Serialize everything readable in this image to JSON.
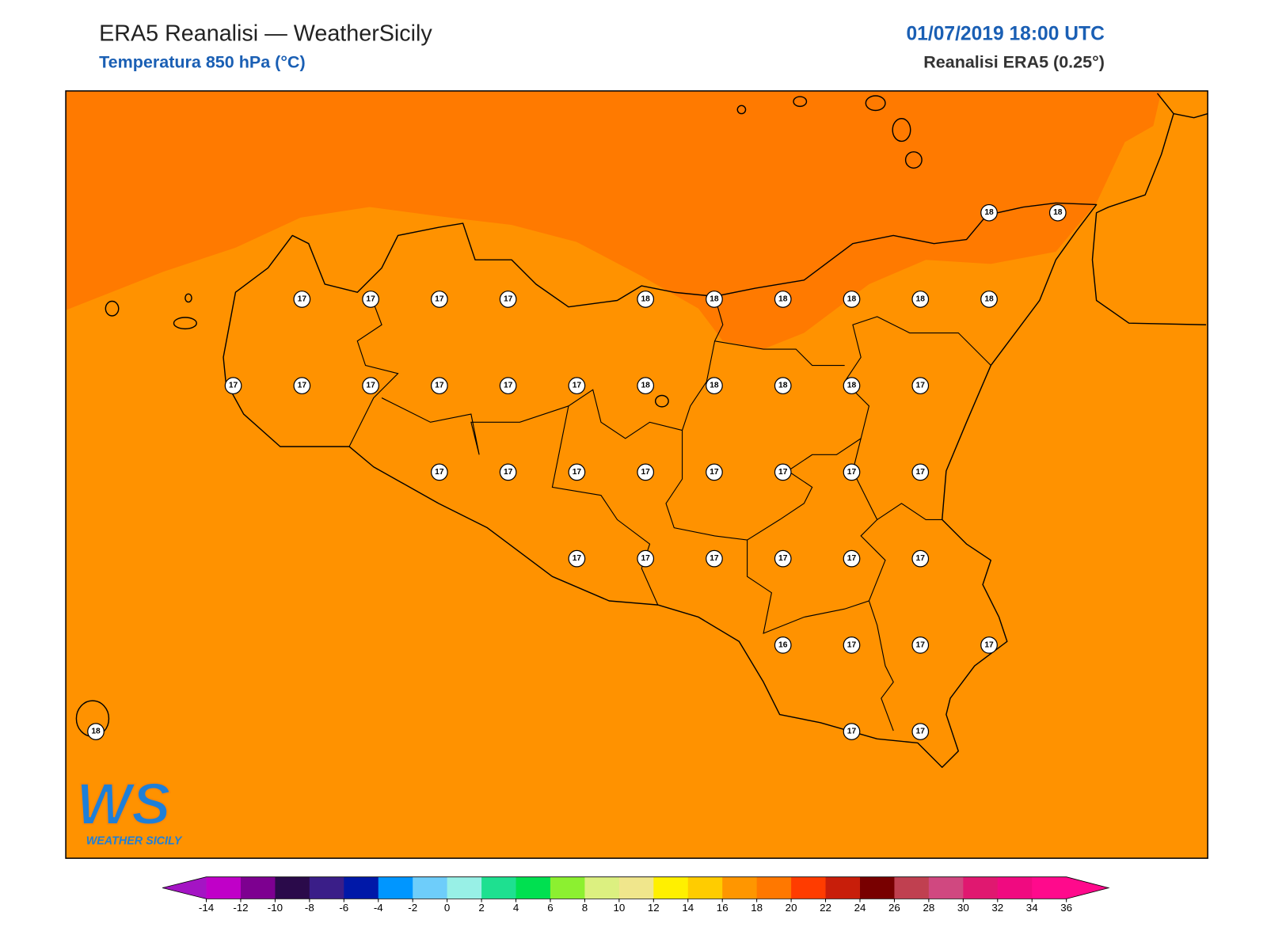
{
  "header": {
    "title": "ERA5 Reanalisi — WeatherSicily",
    "subtitle": "Temperatura 850 hPa (°C)",
    "datetime": "01/07/2019 18:00 UTC",
    "source": "Reanalisi ERA5 (0.25°)"
  },
  "logo": {
    "mark": "WS",
    "text": "WEATHER SICILY"
  },
  "stations": [
    [
      null,
      null,
      null,
      null,
      null,
      null,
      null,
      null,
      null,
      null,
      null,
      null,
      null,
      18,
      18
    ],
    [
      null,
      null,
      null,
      17,
      17,
      17,
      17,
      null,
      18,
      18,
      18,
      18,
      18,
      18,
      null
    ],
    [
      null,
      null,
      17,
      17,
      17,
      17,
      17,
      17,
      18,
      18,
      18,
      18,
      17,
      null,
      null
    ],
    [
      null,
      null,
      null,
      null,
      null,
      17,
      17,
      17,
      17,
      17,
      17,
      17,
      17,
      null,
      null
    ],
    [
      null,
      null,
      null,
      null,
      null,
      null,
      null,
      17,
      17,
      17,
      17,
      17,
      17,
      null,
      null
    ],
    [
      null,
      null,
      null,
      null,
      null,
      null,
      null,
      null,
      null,
      null,
      16,
      17,
      17,
      17,
      null
    ],
    [
      18,
      null,
      null,
      null,
      null,
      null,
      null,
      null,
      null,
      null,
      null,
      17,
      17,
      null,
      null
    ]
  ],
  "colorbar": {
    "ticks": [
      -14,
      -12,
      -10,
      -8,
      -6,
      -4,
      -2,
      0,
      2,
      4,
      6,
      8,
      10,
      12,
      14,
      16,
      18,
      20,
      22,
      24,
      26,
      28,
      30,
      32,
      34,
      36
    ],
    "under_color": "#a414c4",
    "over_color": "#ff0a8c",
    "colors": [
      "#c000c8",
      "#7d0090",
      "#2a0a4a",
      "#3a1e88",
      "#0018a8",
      "#0096ff",
      "#6ecdfa",
      "#98f0e6",
      "#1ee090",
      "#00e050",
      "#8cf030",
      "#dcf080",
      "#f0e68c",
      "#fff000",
      "#ffcc00",
      "#ff9600",
      "#ff7800",
      "#ff3c00",
      "#c81e0a",
      "#780000",
      "#c04050",
      "#d04880",
      "#e01870",
      "#f00a80",
      "#ff0a8c"
    ]
  }
}
